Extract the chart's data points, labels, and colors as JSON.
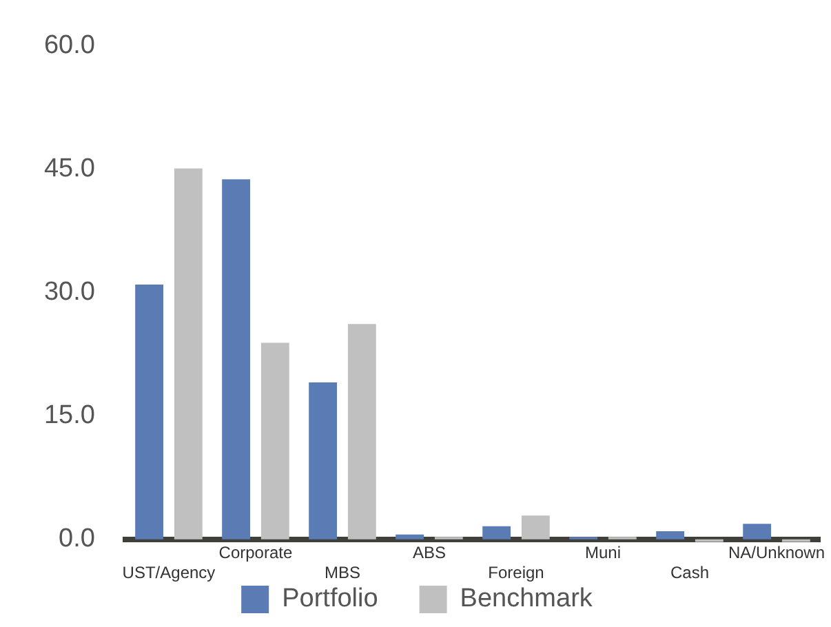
{
  "chart_data": {
    "type": "bar",
    "categories": [
      "UST/Agency",
      "Corporate",
      "MBS",
      "ABS",
      "Foreign",
      "Muni",
      "Cash",
      "NA/Unknown"
    ],
    "series": [
      {
        "name": "Portfolio",
        "color": "#5b7bb5",
        "values": [
          31.0,
          43.8,
          19.1,
          0.6,
          1.6,
          0.3,
          1.0,
          1.9
        ]
      },
      {
        "name": "Benchmark",
        "color": "#c0c0c0",
        "values": [
          45.1,
          23.9,
          26.2,
          0.3,
          2.9,
          0.3,
          -0.3,
          -0.3
        ]
      }
    ],
    "ylim": [
      -0.6,
      60
    ],
    "yticks": [
      {
        "value": 0,
        "label": "0.0"
      },
      {
        "value": 15,
        "label": "15.0"
      },
      {
        "value": 30,
        "label": "30.0"
      },
      {
        "value": 45,
        "label": "45.0"
      },
      {
        "value": 60,
        "label": "60.0"
      }
    ],
    "grid": false,
    "legend": "bottom"
  }
}
